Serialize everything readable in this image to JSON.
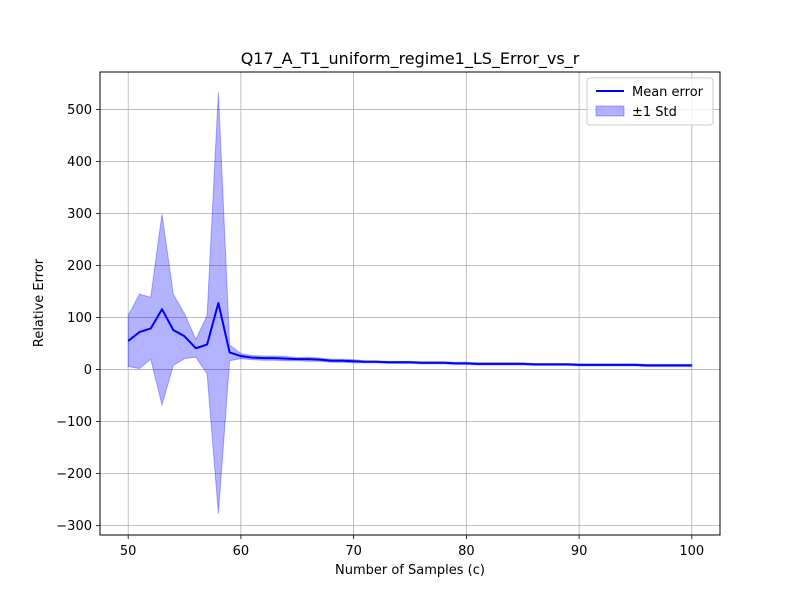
{
  "chart_data": {
    "type": "line",
    "title": "Q17_A_T1_uniform_regime1_LS_Error_vs_r",
    "xlabel": "Number of Samples (c)",
    "ylabel": "Relative Error",
    "xlim": [
      47.5,
      102.5
    ],
    "ylim": [
      -318,
      572
    ],
    "xticks": [
      50,
      60,
      70,
      80,
      90,
      100
    ],
    "yticks": [
      -300,
      -200,
      -100,
      0,
      100,
      200,
      300,
      400,
      500
    ],
    "xtick_labels": [
      "50",
      "60",
      "70",
      "80",
      "90",
      "100"
    ],
    "ytick_labels": [
      "−300",
      "−200",
      "−100",
      "0",
      "100",
      "200",
      "300",
      "400",
      "500"
    ],
    "grid": true,
    "legend_position": "upper-right",
    "colors": {
      "line": "#0000ff",
      "band": "#0000ff",
      "grid": "#b0b0b0",
      "axes": "#000000"
    },
    "x": [
      50,
      51,
      52,
      53,
      54,
      55,
      56,
      57,
      58,
      59,
      60,
      61,
      62,
      63,
      64,
      65,
      66,
      67,
      68,
      69,
      70,
      71,
      72,
      73,
      74,
      75,
      76,
      77,
      78,
      79,
      80,
      81,
      82,
      83,
      84,
      85,
      86,
      87,
      88,
      89,
      90,
      91,
      92,
      93,
      94,
      95,
      96,
      97,
      98,
      99,
      100
    ],
    "series": [
      {
        "name": "Mean error",
        "kind": "line",
        "values": [
          55,
          72,
          79,
          116,
          76,
          64,
          41,
          48,
          128,
          33,
          26,
          23,
          22,
          22,
          21,
          20,
          20,
          19,
          17,
          17,
          16,
          15,
          15,
          14,
          14,
          14,
          13,
          13,
          13,
          12,
          12,
          11,
          11,
          11,
          11,
          11,
          10,
          10,
          10,
          10,
          9,
          9,
          9,
          9,
          9,
          9,
          8,
          8,
          8,
          8,
          8
        ]
      },
      {
        "name": "±1 Std",
        "kind": "band",
        "lower": [
          6,
          2,
          20,
          -68,
          8,
          21,
          24,
          -8,
          -277,
          17,
          21,
          19,
          18,
          18,
          17,
          17,
          16,
          16,
          14,
          14,
          13,
          13,
          13,
          12,
          12,
          12,
          11,
          11,
          11,
          10,
          10,
          9,
          9,
          9,
          9,
          9,
          8,
          8,
          8,
          8,
          7,
          7,
          7,
          7,
          7,
          7,
          6,
          6,
          6,
          6,
          6
        ],
        "upper": [
          104,
          145,
          139,
          299,
          145,
          107,
          58,
          104,
          533,
          47,
          31,
          27,
          26,
          26,
          25,
          23,
          24,
          22,
          20,
          20,
          19,
          17,
          17,
          16,
          16,
          16,
          15,
          15,
          15,
          14,
          14,
          13,
          13,
          13,
          13,
          13,
          12,
          12,
          12,
          12,
          11,
          11,
          11,
          11,
          11,
          11,
          10,
          10,
          10,
          10,
          10
        ]
      }
    ]
  }
}
